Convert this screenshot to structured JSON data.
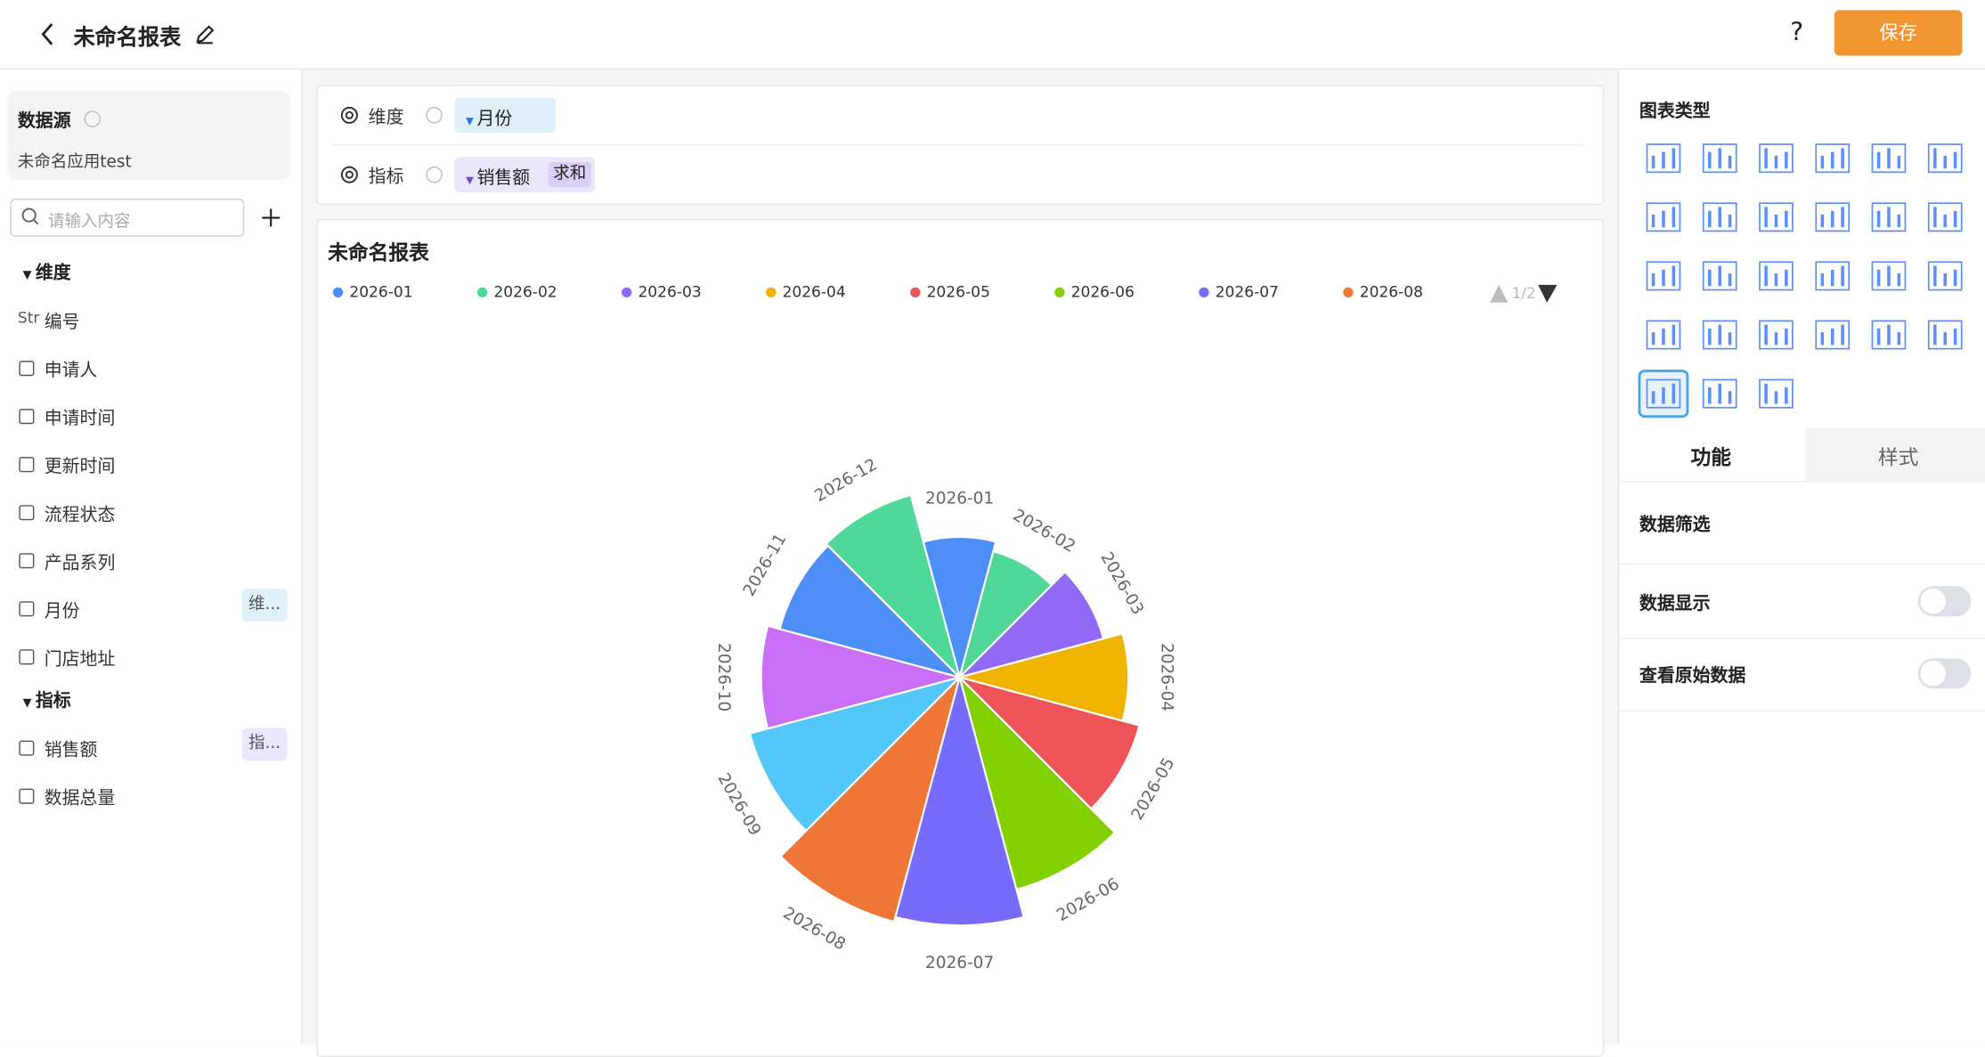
{
  "header": {
    "title": "未命名报表",
    "help": "?",
    "save": "保存"
  },
  "left": {
    "source_label": "数据源",
    "source_name": "未命名应用test",
    "search_placeholder": "请输入内容",
    "dimension_heading": "维度",
    "dimensions": [
      {
        "icon": "Str",
        "label": "编号"
      },
      {
        "label": "申请人"
      },
      {
        "label": "申请时间"
      },
      {
        "label": "更新时间"
      },
      {
        "label": "流程状态"
      },
      {
        "label": "产品系列"
      },
      {
        "label": "月份",
        "tag": "维..."
      },
      {
        "label": "门店地址"
      }
    ],
    "metric_heading": "指标",
    "metrics": [
      {
        "label": "销售额",
        "tag": "指..."
      },
      {
        "label": "数据总量"
      }
    ]
  },
  "config": {
    "dimension_label": "维度",
    "dimension_field": "月份",
    "metric_label": "指标",
    "metric_field": "销售额",
    "metric_agg": "求和"
  },
  "chart_data": {
    "type": "rose",
    "title": "未命名报表",
    "categories": [
      "2026-01",
      "2026-02",
      "2026-03",
      "2026-04",
      "2026-05",
      "2026-06",
      "2026-07",
      "2026-08",
      "2026-09",
      "2026-10",
      "2026-11",
      "2026-12"
    ],
    "values": [
      113,
      105,
      120,
      136,
      150,
      177,
      200,
      204,
      175,
      160,
      150,
      152
    ],
    "colors": [
      "#4e8ff7",
      "#50d89a",
      "#9169f7",
      "#f0b400",
      "#ef5459",
      "#83d100",
      "#766bfa",
      "#ee7636",
      "#54c7fa",
      "#c96ef7",
      "#4e8ff7",
      "#50d89a"
    ],
    "legend_page": "1/2"
  },
  "right": {
    "chart_type_heading": "图表类型",
    "tabs": [
      "功能",
      "样式"
    ],
    "settings": [
      "数据筛选",
      "数据显示",
      "查看原始数据"
    ]
  }
}
